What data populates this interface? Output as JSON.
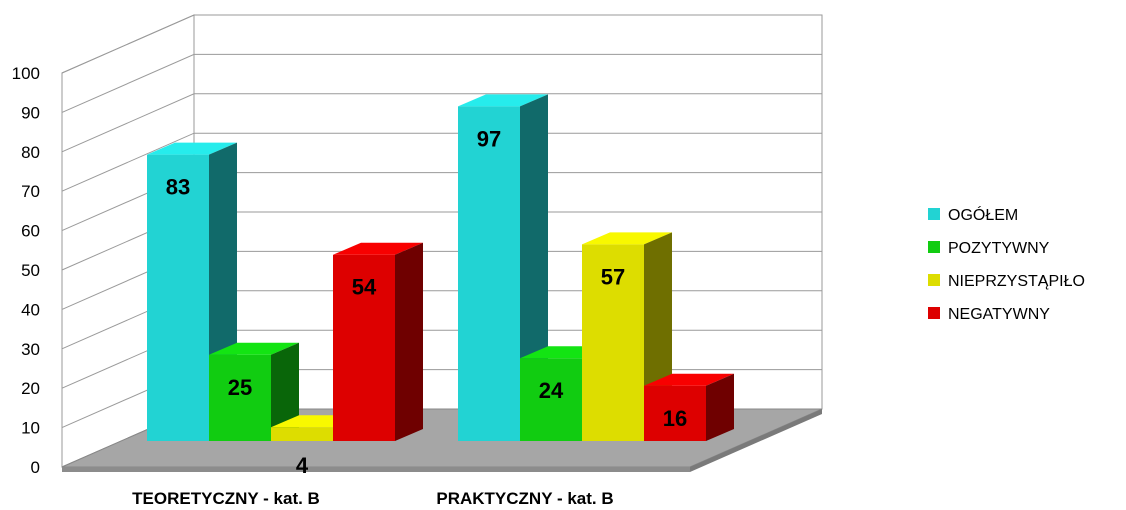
{
  "chart_data": {
    "type": "bar",
    "title": "",
    "xlabel": "",
    "ylabel": "",
    "ylim": [
      0,
      100
    ],
    "yticks": [
      "0",
      "10",
      "20",
      "30",
      "40",
      "50",
      "60",
      "70",
      "80",
      "90",
      "100"
    ],
    "categories": [
      "TEORETYCZNY - kat. B",
      "PRAKTYCZNY - kat. B"
    ],
    "series": [
      {
        "name": "OGÓŁEM",
        "values": [
          83,
          97
        ],
        "color": "#22d3d3",
        "labels": [
          "83",
          "97"
        ]
      },
      {
        "name": "POZYTYWNY",
        "values": [
          25,
          24
        ],
        "color": "#11cc11",
        "labels": [
          "25",
          "24"
        ]
      },
      {
        "name": "NIEPRZYSTĄPIŁO",
        "values": [
          4,
          57
        ],
        "color": "#dddd00",
        "labels": [
          "4",
          "57"
        ]
      },
      {
        "name": "NEGATYWNY",
        "values": [
          54,
          16
        ],
        "color": "#dd0000",
        "labels": [
          "54",
          "16"
        ]
      }
    ],
    "legend_position": "right",
    "grid": true,
    "three_d": true
  }
}
